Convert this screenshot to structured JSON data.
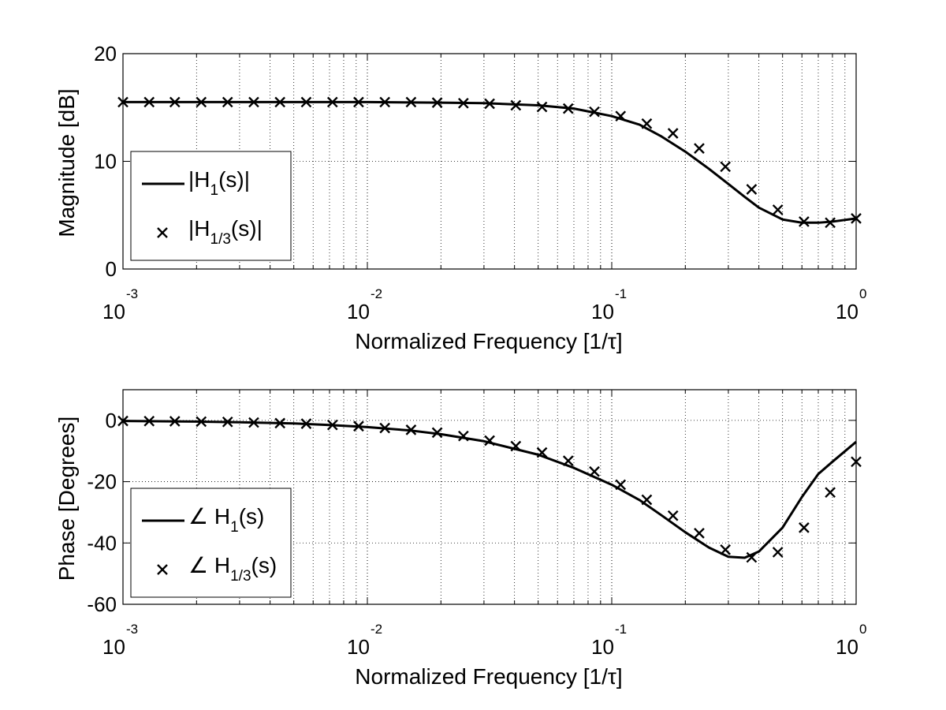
{
  "chart_data": [
    {
      "type": "line",
      "xscale": "log",
      "xlim": [
        0.001,
        1
      ],
      "ylim": [
        0,
        20
      ],
      "xlabel": "Normalized Frequency [1/τ]",
      "ylabel": "Magnitude [dB]",
      "grid": true,
      "legend_position": "bottom-left",
      "x_ticks": [
        {
          "base": "10",
          "exp": "-3",
          "value": 0.001
        },
        {
          "base": "10",
          "exp": "-2",
          "value": 0.01
        },
        {
          "base": "10",
          "exp": "-1",
          "value": 0.1
        },
        {
          "base": "10",
          "exp": "0",
          "value": 1
        }
      ],
      "y_ticks": [
        {
          "label": "0",
          "value": 0
        },
        {
          "label": "10",
          "value": 10
        },
        {
          "label": "20",
          "value": 20
        }
      ],
      "legend": [
        {
          "prefix": "|H",
          "sub": "1",
          "suffix": "(s)|",
          "marker": "line"
        },
        {
          "prefix": "|H",
          "sub": "1/3",
          "suffix": "(s)|",
          "marker": "x"
        }
      ],
      "series": [
        {
          "style": "line",
          "x": [
            0.001,
            0.01,
            0.02,
            0.03,
            0.05,
            0.07,
            0.1,
            0.13,
            0.16,
            0.2,
            0.25,
            0.3,
            0.35,
            0.4,
            0.5,
            0.6,
            0.7,
            0.8,
            1.0
          ],
          "y": [
            15.5,
            15.5,
            15.45,
            15.4,
            15.2,
            14.9,
            14.2,
            13.4,
            12.3,
            10.9,
            9.3,
            7.9,
            6.7,
            5.7,
            4.6,
            4.3,
            4.3,
            4.4,
            4.7
          ]
        },
        {
          "style": "x",
          "x": [
            0.001,
            0.00128,
            0.00163,
            0.00209,
            0.00268,
            0.00343,
            0.00439,
            0.00562,
            0.0072,
            0.00921,
            0.01179,
            0.01509,
            0.01931,
            0.02472,
            0.03164,
            0.0405,
            0.05184,
            0.06635,
            0.08493,
            0.1087,
            0.1391,
            0.1781,
            0.228,
            0.2918,
            0.3735,
            0.4781,
            0.612,
            0.7833,
            1.0
          ],
          "y": [
            15.5,
            15.5,
            15.5,
            15.5,
            15.5,
            15.5,
            15.5,
            15.5,
            15.5,
            15.5,
            15.5,
            15.5,
            15.45,
            15.4,
            15.35,
            15.2,
            15.05,
            14.9,
            14.6,
            14.2,
            13.5,
            12.6,
            11.2,
            9.5,
            7.4,
            5.5,
            4.4,
            4.3,
            4.7
          ]
        }
      ]
    },
    {
      "type": "line",
      "xscale": "log",
      "xlim": [
        0.001,
        1
      ],
      "ylim": [
        -60,
        10
      ],
      "xlabel": "Normalized Frequency [1/τ]",
      "ylabel": "Phase [Degrees]",
      "grid": true,
      "legend_position": "bottom-left",
      "x_ticks": [
        {
          "base": "10",
          "exp": "-3",
          "value": 0.001
        },
        {
          "base": "10",
          "exp": "-2",
          "value": 0.01
        },
        {
          "base": "10",
          "exp": "-1",
          "value": 0.1
        },
        {
          "base": "10",
          "exp": "0",
          "value": 1
        }
      ],
      "y_ticks": [
        {
          "label": "-60",
          "value": -60
        },
        {
          "label": "-40",
          "value": -40
        },
        {
          "label": "-20",
          "value": -20
        },
        {
          "label": "0",
          "value": 0
        }
      ],
      "legend": [
        {
          "prefix": "∠ H",
          "sub": "1",
          "suffix": "(s)",
          "marker": "line"
        },
        {
          "prefix": "∠ H",
          "sub": "1/3",
          "suffix": "(s)",
          "marker": "x"
        }
      ],
      "series": [
        {
          "style": "line",
          "x": [
            0.001,
            0.002,
            0.003,
            0.005,
            0.007,
            0.01,
            0.015,
            0.02,
            0.03,
            0.05,
            0.07,
            0.1,
            0.13,
            0.16,
            0.2,
            0.25,
            0.3,
            0.35,
            0.4,
            0.5,
            0.6,
            0.7,
            0.8,
            1.0
          ],
          "y": [
            -0.2,
            -0.4,
            -0.6,
            -1.0,
            -1.5,
            -2.2,
            -3.3,
            -4.5,
            -6.8,
            -11.2,
            -15.5,
            -21.0,
            -26.0,
            -31.0,
            -36.5,
            -41.5,
            -44.5,
            -44.8,
            -42.8,
            -35.0,
            -25.0,
            -17.5,
            -13.5,
            -7.0
          ]
        },
        {
          "style": "x",
          "x": [
            0.001,
            0.00128,
            0.00163,
            0.00209,
            0.00268,
            0.00343,
            0.00439,
            0.00562,
            0.0072,
            0.00921,
            0.01179,
            0.01509,
            0.01931,
            0.02472,
            0.03164,
            0.0405,
            0.05184,
            0.06635,
            0.08493,
            0.1087,
            0.1391,
            0.1781,
            0.228,
            0.2918,
            0.3735,
            0.4781,
            0.612,
            0.7833,
            1.0
          ],
          "y": [
            -0.2,
            -0.25,
            -0.3,
            -0.4,
            -0.5,
            -0.7,
            -0.9,
            -1.1,
            -1.5,
            -1.9,
            -2.5,
            -3.1,
            -4.0,
            -5.1,
            -6.6,
            -8.4,
            -10.5,
            -13.2,
            -16.7,
            -21.0,
            -25.9,
            -31.1,
            -36.8,
            -42.2,
            -44.7,
            -43.0,
            -35.0,
            -23.5,
            -13.5
          ]
        }
      ]
    }
  ]
}
